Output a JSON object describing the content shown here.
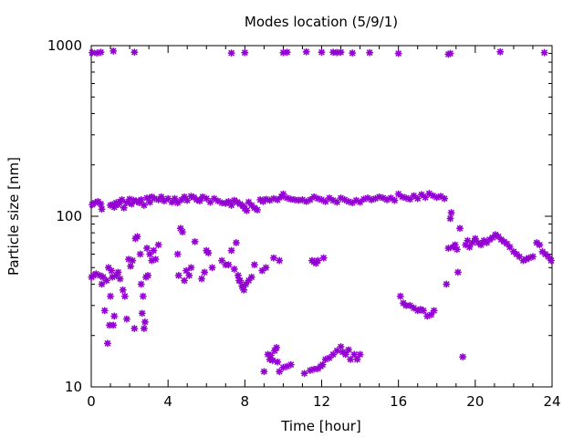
{
  "chart_data": {
    "type": "scatter",
    "title": "Modes location (5/9/1)",
    "xlabel": "Time [hour]",
    "ylabel": "Particle size [nm]",
    "xlim": [
      0,
      24
    ],
    "ylim": [
      10,
      1000
    ],
    "yscale": "log",
    "grid": false,
    "x_ticks": [
      0,
      4,
      8,
      12,
      16,
      20,
      24
    ],
    "x_tick_labels": [
      "0",
      "4",
      "8",
      "12",
      "16",
      "20",
      "24"
    ],
    "y_ticks": [
      10,
      100,
      1000
    ],
    "y_tick_labels": [
      "10",
      "100",
      "1000"
    ],
    "marker": "asterisk",
    "color": "#9400d3",
    "series": [
      {
        "values": [
          [
            0.02,
            44
          ],
          [
            0.1,
            45
          ],
          [
            0.25,
            46
          ],
          [
            0.45,
            45
          ],
          [
            0.55,
            40
          ],
          [
            0.62,
            44
          ],
          [
            0.7,
            28
          ],
          [
            0.8,
            42
          ],
          [
            0.85,
            18
          ],
          [
            0.9,
            50
          ],
          [
            0.95,
            23
          ],
          [
            1.0,
            34
          ],
          [
            1.05,
            48
          ],
          [
            1.1,
            44
          ],
          [
            1.15,
            23
          ],
          [
            1.2,
            26
          ],
          [
            1.3,
            45
          ],
          [
            1.4,
            47
          ],
          [
            1.5,
            43
          ],
          [
            1.65,
            37
          ],
          [
            1.75,
            34
          ],
          [
            1.85,
            25
          ],
          [
            1.95,
            56
          ],
          [
            2.05,
            51
          ],
          [
            2.15,
            55
          ],
          [
            2.25,
            22
          ],
          [
            2.3,
            74
          ],
          [
            2.4,
            76
          ],
          [
            2.55,
            60
          ],
          [
            2.6,
            40
          ],
          [
            2.65,
            27
          ],
          [
            2.7,
            34
          ],
          [
            2.75,
            22
          ],
          [
            2.8,
            24
          ],
          [
            2.85,
            44
          ],
          [
            2.9,
            65
          ],
          [
            2.95,
            45
          ],
          [
            3.05,
            60
          ],
          [
            3.15,
            55
          ],
          [
            3.25,
            63
          ],
          [
            3.35,
            56
          ],
          [
            3.5,
            68
          ],
          [
            4.5,
            60
          ],
          [
            4.55,
            45
          ],
          [
            4.65,
            85
          ],
          [
            4.75,
            81
          ],
          [
            4.85,
            42
          ],
          [
            4.95,
            48
          ],
          [
            5.1,
            45
          ],
          [
            5.2,
            50
          ],
          [
            5.4,
            71
          ],
          [
            5.75,
            43
          ],
          [
            5.9,
            47
          ],
          [
            6.0,
            63
          ],
          [
            6.1,
            61
          ],
          [
            6.3,
            50
          ],
          [
            6.8,
            55
          ],
          [
            7.0,
            52
          ],
          [
            7.15,
            52
          ],
          [
            7.3,
            63
          ],
          [
            7.45,
            49
          ],
          [
            7.55,
            70
          ],
          [
            7.65,
            45
          ],
          [
            7.7,
            42
          ],
          [
            7.75,
            42
          ],
          [
            7.85,
            39
          ],
          [
            7.9,
            38
          ],
          [
            7.95,
            37
          ],
          [
            8.05,
            40
          ],
          [
            8.2,
            42
          ],
          [
            8.35,
            44
          ],
          [
            8.5,
            52
          ],
          [
            8.9,
            48
          ],
          [
            9.1,
            50
          ],
          [
            9.5,
            57
          ],
          [
            9.8,
            55
          ],
          [
            9.0,
            12.3
          ],
          [
            9.2,
            15.5
          ],
          [
            9.3,
            14.5
          ],
          [
            9.35,
            15.3
          ],
          [
            9.45,
            14.3
          ],
          [
            9.55,
            16.3
          ],
          [
            9.65,
            17
          ],
          [
            9.7,
            14
          ],
          [
            9.8,
            12.3
          ],
          [
            10.0,
            13
          ],
          [
            10.2,
            13.2
          ],
          [
            10.4,
            13.5
          ],
          [
            11.1,
            12
          ],
          [
            11.4,
            12.5
          ],
          [
            11.6,
            12.7
          ],
          [
            11.8,
            12.8
          ],
          [
            11.95,
            13.2
          ],
          [
            12.05,
            13.5
          ],
          [
            12.2,
            14.5
          ],
          [
            12.4,
            14.8
          ],
          [
            12.6,
            15.5
          ],
          [
            12.8,
            16.3
          ],
          [
            13.0,
            17.2
          ],
          [
            13.1,
            16
          ],
          [
            13.25,
            15.5
          ],
          [
            13.4,
            16.5
          ],
          [
            13.5,
            14.5
          ],
          [
            13.7,
            15.5
          ],
          [
            13.85,
            14.5
          ],
          [
            14.0,
            15.5
          ],
          [
            11.5,
            55
          ],
          [
            11.6,
            54
          ],
          [
            11.7,
            53
          ],
          [
            11.8,
            55
          ],
          [
            12.1,
            57
          ],
          [
            16.1,
            34
          ],
          [
            16.25,
            31
          ],
          [
            16.4,
            30
          ],
          [
            16.6,
            30
          ],
          [
            16.8,
            29
          ],
          [
            17.0,
            28
          ],
          [
            17.15,
            28.5
          ],
          [
            17.3,
            28
          ],
          [
            17.5,
            26
          ],
          [
            17.7,
            26.5
          ],
          [
            17.85,
            28
          ],
          [
            18.5,
            40
          ],
          [
            18.6,
            65
          ],
          [
            18.7,
            97
          ],
          [
            18.75,
            105
          ],
          [
            18.85,
            66
          ],
          [
            18.95,
            68
          ],
          [
            19.05,
            64
          ],
          [
            19.1,
            47
          ],
          [
            19.2,
            85
          ],
          [
            19.35,
            15
          ],
          [
            0.05,
            117
          ],
          [
            0.2,
            120
          ],
          [
            0.35,
            122
          ],
          [
            0.5,
            118
          ],
          [
            0.55,
            110
          ],
          [
            1.0,
            116
          ],
          [
            1.1,
            117
          ],
          [
            1.2,
            113
          ],
          [
            1.3,
            120
          ],
          [
            1.4,
            117
          ],
          [
            1.5,
            122
          ],
          [
            1.6,
            125
          ],
          [
            1.7,
            112
          ],
          [
            1.85,
            120
          ],
          [
            2.0,
            126
          ],
          [
            2.1,
            118
          ],
          [
            2.2,
            124
          ],
          [
            2.35,
            123
          ],
          [
            2.5,
            120
          ],
          [
            2.6,
            125
          ],
          [
            2.75,
            116
          ],
          [
            2.9,
            128
          ],
          [
            3.05,
            121
          ],
          [
            3.15,
            130
          ],
          [
            3.3,
            127
          ],
          [
            3.5,
            125
          ],
          [
            3.65,
            130
          ],
          [
            3.8,
            123
          ],
          [
            4.0,
            127
          ],
          [
            4.2,
            121
          ],
          [
            4.35,
            127
          ],
          [
            4.5,
            120
          ],
          [
            4.7,
            125
          ],
          [
            4.85,
            130
          ],
          [
            5.0,
            124
          ],
          [
            5.2,
            131
          ],
          [
            5.35,
            129
          ],
          [
            5.5,
            125
          ],
          [
            5.65,
            123
          ],
          [
            5.8,
            130
          ],
          [
            6.0,
            127
          ],
          [
            6.2,
            121
          ],
          [
            6.4,
            127
          ],
          [
            6.6,
            123
          ],
          [
            6.8,
            120
          ],
          [
            7.0,
            119
          ],
          [
            7.15,
            122
          ],
          [
            7.3,
            116
          ],
          [
            7.45,
            124
          ],
          [
            7.6,
            121
          ],
          [
            7.75,
            118
          ],
          [
            7.9,
            115
          ],
          [
            8.0,
            111
          ],
          [
            8.1,
            108
          ],
          [
            8.2,
            121
          ],
          [
            8.35,
            116
          ],
          [
            8.5,
            112
          ],
          [
            8.65,
            109
          ],
          [
            8.8,
            125
          ],
          [
            8.95,
            122
          ],
          [
            9.1,
            126
          ],
          [
            9.3,
            124
          ],
          [
            9.5,
            127
          ],
          [
            9.7,
            125
          ],
          [
            9.9,
            130
          ],
          [
            10.0,
            135
          ],
          [
            10.2,
            128
          ],
          [
            10.4,
            126
          ],
          [
            10.6,
            125
          ],
          [
            10.8,
            124
          ],
          [
            11.0,
            125
          ],
          [
            11.2,
            122
          ],
          [
            11.4,
            125
          ],
          [
            11.6,
            130
          ],
          [
            11.8,
            127
          ],
          [
            12.0,
            125
          ],
          [
            12.2,
            122
          ],
          [
            12.4,
            128
          ],
          [
            12.6,
            124
          ],
          [
            12.8,
            121
          ],
          [
            13.0,
            128
          ],
          [
            13.2,
            125
          ],
          [
            13.4,
            122
          ],
          [
            13.6,
            120
          ],
          [
            13.8,
            124
          ],
          [
            14.0,
            121
          ],
          [
            14.2,
            126
          ],
          [
            14.4,
            128
          ],
          [
            14.6,
            125
          ],
          [
            14.8,
            127
          ],
          [
            15.0,
            130
          ],
          [
            15.2,
            128
          ],
          [
            15.4,
            125
          ],
          [
            15.6,
            128
          ],
          [
            15.8,
            124
          ],
          [
            16.0,
            135
          ],
          [
            16.2,
            130
          ],
          [
            16.4,
            128
          ],
          [
            16.6,
            126
          ],
          [
            16.8,
            132
          ],
          [
            17.0,
            127
          ],
          [
            17.2,
            134
          ],
          [
            17.4,
            129
          ],
          [
            17.6,
            136
          ],
          [
            17.8,
            132
          ],
          [
            18.0,
            129
          ],
          [
            18.2,
            131
          ],
          [
            18.4,
            127
          ],
          [
            19.5,
            68
          ],
          [
            19.6,
            72
          ],
          [
            19.7,
            66
          ],
          [
            19.85,
            70
          ],
          [
            20.0,
            74
          ],
          [
            20.15,
            70
          ],
          [
            20.3,
            68
          ],
          [
            20.45,
            72
          ],
          [
            20.6,
            70
          ],
          [
            20.75,
            73
          ],
          [
            20.9,
            75
          ],
          [
            21.05,
            78
          ],
          [
            21.2,
            76
          ],
          [
            21.35,
            73
          ],
          [
            21.5,
            71
          ],
          [
            21.65,
            69
          ],
          [
            21.8,
            66
          ],
          [
            22.0,
            62
          ],
          [
            22.15,
            60
          ],
          [
            22.3,
            58
          ],
          [
            22.5,
            55
          ],
          [
            22.65,
            56
          ],
          [
            22.8,
            57
          ],
          [
            23.0,
            58
          ],
          [
            23.2,
            70
          ],
          [
            23.35,
            68
          ],
          [
            23.5,
            62
          ],
          [
            23.65,
            60
          ],
          [
            23.8,
            58
          ],
          [
            23.95,
            55
          ],
          [
            0.05,
            910
          ],
          [
            0.3,
            905
          ],
          [
            0.5,
            915
          ],
          [
            1.15,
            930
          ],
          [
            2.25,
            915
          ],
          [
            7.3,
            905
          ],
          [
            8.0,
            910
          ],
          [
            10.0,
            910
          ],
          [
            10.2,
            915
          ],
          [
            11.2,
            920
          ],
          [
            12.0,
            915
          ],
          [
            12.6,
            915
          ],
          [
            12.8,
            910
          ],
          [
            13.0,
            915
          ],
          [
            13.6,
            905
          ],
          [
            14.5,
            910
          ],
          [
            16.0,
            900
          ],
          [
            18.6,
            890
          ],
          [
            18.7,
            900
          ],
          [
            21.3,
            920
          ],
          [
            23.6,
            910
          ]
        ]
      }
    ]
  }
}
